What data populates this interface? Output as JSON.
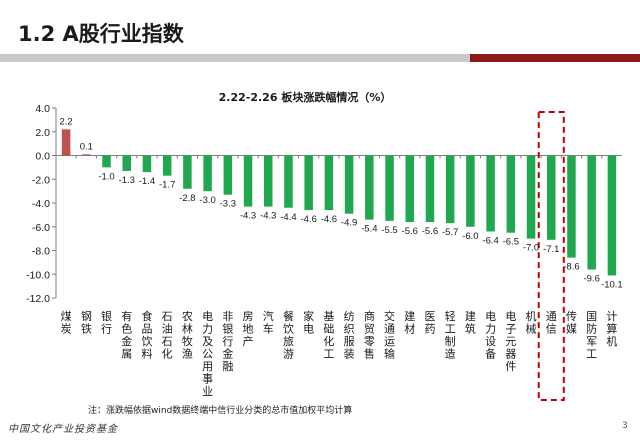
{
  "slide": {
    "title": "1.2 A股行业指数",
    "footnote": "注：涨跌幅依据wind数据终端中信行业分类的总市值加权平均计算",
    "footer_logo": "中国文化产业投资基金",
    "page_number": "3"
  },
  "colors": {
    "positive_bar": "#c0504d",
    "negative_bar": "#1fa84f",
    "highlight_box": "#c00000",
    "title_rule_grey": "#c9c9c9",
    "title_rule_red": "#8b1a1a"
  },
  "chart_data": {
    "type": "bar",
    "title": "2.22-2.26 板块涨跌幅情况（%）",
    "categories": [
      "煤炭",
      "钢铁",
      "银行",
      "有色金属",
      "食品饮料",
      "石油石化",
      "农林牧渔",
      "电力及公用事业",
      "非银行金融",
      "房地产",
      "汽车",
      "餐饮旅游",
      "家电",
      "基础化工",
      "纺织服装",
      "商贸零售",
      "交通运输",
      "建材",
      "医药",
      "轻工制造",
      "建筑",
      "电力设备",
      "电子元器件",
      "机械",
      "通信",
      "传媒",
      "国防军工",
      "计算机"
    ],
    "values": [
      2.2,
      0.1,
      -1.0,
      -1.3,
      -1.4,
      -1.7,
      -2.8,
      -3.0,
      -3.3,
      -4.3,
      -4.3,
      -4.4,
      -4.6,
      -4.6,
      -4.9,
      -5.4,
      -5.5,
      -5.6,
      -5.6,
      -5.7,
      -6.0,
      -6.4,
      -6.5,
      -7.0,
      -7.1,
      -8.6,
      -9.6,
      -10.1
    ],
    "value_labels": [
      "2.2",
      "0.1",
      "-1.0",
      "-1.3",
      "-1.4",
      "-1.7",
      "-2.8",
      "-3.0",
      "-3.3",
      "-4.3",
      "-4.3",
      "-4.4",
      "-4.6",
      "-4.6",
      "-4.9",
      "-5.4",
      "-5.5",
      "-5.6",
      "-5.6",
      "-5.7",
      "-6.0",
      "-6.4",
      "-6.5",
      "-7.0",
      "-7.1",
      "-8.6",
      "-9.6",
      "-10.1"
    ],
    "ylim": [
      -12.0,
      4.0
    ],
    "yticks": [
      4.0,
      2.0,
      0.0,
      -2.0,
      -4.0,
      -6.0,
      -8.0,
      -10.0,
      -12.0
    ],
    "ytick_labels": [
      "4.0",
      "2.0",
      "0.0",
      "-2.0",
      "-4.0",
      "-6.0",
      "-8.0",
      "-10.0",
      "-12.0"
    ],
    "highlighted_category": "通信",
    "grid": false,
    "legend": "none"
  }
}
